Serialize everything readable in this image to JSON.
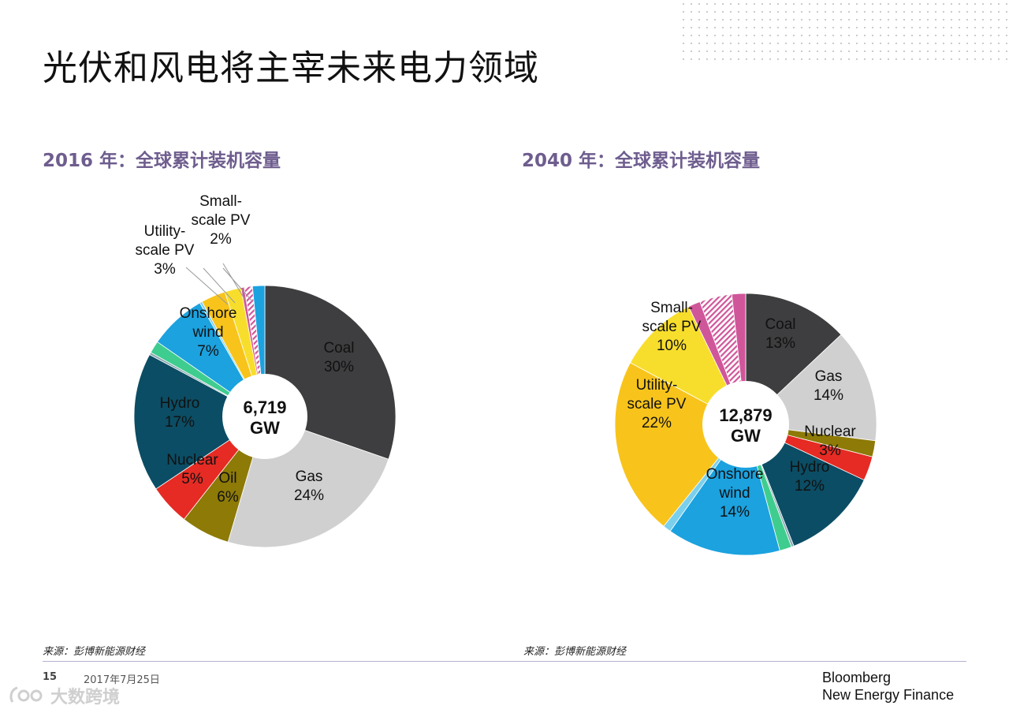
{
  "title": "光伏和风电将主宰未来电力领域",
  "colors": {
    "heading": "#6e5d8e",
    "coal": "#3e3d3f",
    "gas": "#d1d0d1",
    "oil": "#8d7a07",
    "nuclear": "#e52b24",
    "hydro": "#0b4d64",
    "geothermal": "#8aa8b3",
    "biomass": "#3fcd8f",
    "onshore_wind": "#1ba2df",
    "offshore_wind": "#7ad0ec",
    "utility_pv": "#f8c41b",
    "small_pv": "#f8de2c",
    "other_pink": "#d0569a",
    "other_hatch": "#e39bc2"
  },
  "chart_data": [
    {
      "type": "pie",
      "title": "2016 年：全球累计装机容量",
      "center_label": [
        "6,719",
        "GW"
      ],
      "slices": [
        {
          "name": "Coal",
          "value": 30,
          "label": [
            "Coal",
            "30%"
          ],
          "color": "coal"
        },
        {
          "name": "Gas",
          "value": 24,
          "label": [
            "Gas",
            "24%"
          ],
          "color": "gas"
        },
        {
          "name": "Oil",
          "value": 6,
          "label": [
            "Oil",
            "6%"
          ],
          "color": "oil"
        },
        {
          "name": "Nuclear",
          "value": 5,
          "label": [
            "Nuclear",
            "5%"
          ],
          "color": "nuclear"
        },
        {
          "name": "Hydro",
          "value": 17,
          "label": [
            "Hydro",
            "17%"
          ],
          "color": "hydro"
        },
        {
          "name": "Geothermal",
          "value": 0.3,
          "label": [],
          "color": "geothermal"
        },
        {
          "name": "Biomass",
          "value": 1.5,
          "label": [],
          "color": "biomass"
        },
        {
          "name": "Onshore wind",
          "value": 7,
          "label": [
            "Onshore",
            "wind",
            "7%"
          ],
          "color": "onshore_wind"
        },
        {
          "name": "Offshore wind",
          "value": 0.3,
          "label": [],
          "color": "offshore_wind"
        },
        {
          "name": "Utility-scale PV",
          "value": 3,
          "label": [
            "Utility-",
            "scale PV",
            "3%"
          ],
          "color": "utility_pv"
        },
        {
          "name": "Small-scale PV",
          "value": 2,
          "label": [
            "Small-",
            "scale PV",
            "2%"
          ],
          "color": "small_pv"
        },
        {
          "name": "Other A",
          "value": 0.4,
          "label": [],
          "color": "other_pink"
        },
        {
          "name": "Other B",
          "value": 1,
          "label": [],
          "color": "other_hatch"
        },
        {
          "name": "Other C",
          "value": 1.5,
          "label": [],
          "color": "onshore_wind"
        }
      ]
    },
    {
      "type": "pie",
      "title": "2040 年：全球累计装机容量",
      "center_label": [
        "12,879",
        "GW"
      ],
      "slices": [
        {
          "name": "Coal",
          "value": 13,
          "label": [
            "Coal",
            "13%"
          ],
          "color": "coal"
        },
        {
          "name": "Gas",
          "value": 14,
          "label": [
            "Gas",
            "14%"
          ],
          "color": "gas"
        },
        {
          "name": "Oil",
          "value": 2,
          "label": [],
          "color": "oil"
        },
        {
          "name": "Nuclear",
          "value": 3,
          "label": [
            "Nuclear",
            "3%"
          ],
          "color": "nuclear"
        },
        {
          "name": "Hydro",
          "value": 12,
          "label": [
            "Hydro",
            "12%"
          ],
          "color": "hydro"
        },
        {
          "name": "Geothermal",
          "value": 0.3,
          "label": [],
          "color": "geothermal"
        },
        {
          "name": "Biomass",
          "value": 1.5,
          "label": [],
          "color": "biomass"
        },
        {
          "name": "Onshore wind",
          "value": 14,
          "label": [
            "Onshore",
            "wind",
            "14%"
          ],
          "color": "onshore_wind"
        },
        {
          "name": "Offshore wind",
          "value": 1,
          "label": [],
          "color": "offshore_wind"
        },
        {
          "name": "Utility-scale PV",
          "value": 22,
          "label": [
            "Utility-",
            "scale PV",
            "22%"
          ],
          "color": "utility_pv"
        },
        {
          "name": "Small-scale PV",
          "value": 10,
          "label": [
            "Small-",
            "scale PV",
            "10%"
          ],
          "color": "small_pv"
        },
        {
          "name": "Other A",
          "value": 1.5,
          "label": [],
          "color": "other_pink"
        },
        {
          "name": "Other B",
          "value": 4,
          "label": [],
          "color": "other_hatch"
        },
        {
          "name": "Other C",
          "value": 1.7,
          "label": [],
          "color": "other_pink"
        }
      ]
    }
  ],
  "source_note": "来源：彭博新能源财经",
  "footer": {
    "page_number": "15",
    "date": "2017年7月25日",
    "brand_line1": "Bloomberg",
    "brand_line2": "New Energy Finance"
  },
  "watermark": "大数跨境"
}
